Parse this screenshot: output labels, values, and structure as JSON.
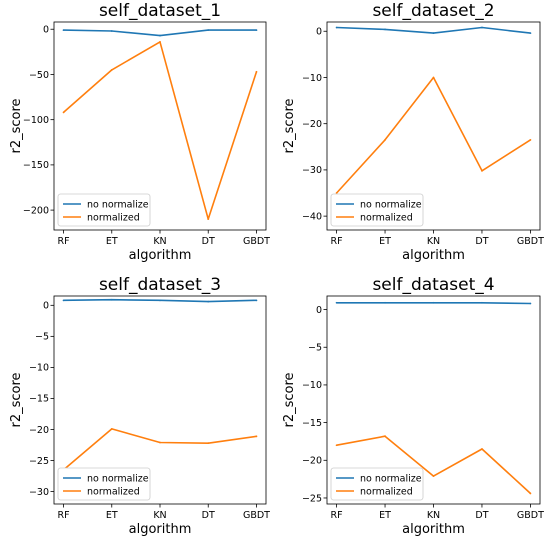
{
  "chart_data": [
    {
      "type": "line",
      "title": "self_dataset_1",
      "xlabel": "algorithm",
      "ylabel": "r2_score",
      "categories": [
        "RF",
        "ET",
        "KN",
        "DT",
        "GBDT"
      ],
      "ylim": [
        -222,
        8
      ],
      "yticks": [
        0,
        -50,
        -100,
        -150,
        -200
      ],
      "yticklabels": [
        "0",
        "−50",
        "−100",
        "−150",
        "−200"
      ],
      "legend": "lower-left",
      "grid": false,
      "series": [
        {
          "name": "no normalize",
          "color": "#1f77b4",
          "values": [
            -1,
            -2,
            -7,
            -1,
            -1
          ]
        },
        {
          "name": "normalized",
          "color": "#ff7f0e",
          "values": [
            -92,
            -45,
            -14,
            -210,
            -47
          ]
        }
      ]
    },
    {
      "type": "line",
      "title": "self_dataset_2",
      "xlabel": "algorithm",
      "ylabel": "r2_score",
      "categories": [
        "RF",
        "ET",
        "KN",
        "DT",
        "GBDT"
      ],
      "ylim": [
        -43,
        2
      ],
      "yticks": [
        0,
        -10,
        -20,
        -30,
        -40
      ],
      "yticklabels": [
        "0",
        "−10",
        "−20",
        "−30",
        "−40"
      ],
      "legend": "lower-left",
      "grid": false,
      "series": [
        {
          "name": "no normalize",
          "color": "#1f77b4",
          "values": [
            0.8,
            0.4,
            -0.4,
            0.8,
            -0.4
          ]
        },
        {
          "name": "normalized",
          "color": "#ff7f0e",
          "values": [
            -35,
            -23.5,
            -10,
            -30.2,
            -23.5
          ]
        }
      ]
    },
    {
      "type": "line",
      "title": "self_dataset_3",
      "xlabel": "algorithm",
      "ylabel": "r2_score",
      "categories": [
        "RF",
        "ET",
        "KN",
        "DT",
        "GBDT"
      ],
      "ylim": [
        -32,
        1.5
      ],
      "yticks": [
        0,
        -5,
        -10,
        -15,
        -20,
        -25,
        -30
      ],
      "yticklabels": [
        "0",
        "−5",
        "−10",
        "−15",
        "−20",
        "−25",
        "−30"
      ],
      "legend": "lower-left",
      "grid": false,
      "series": [
        {
          "name": "no normalize",
          "color": "#1f77b4",
          "values": [
            0.8,
            0.9,
            0.8,
            0.6,
            0.8
          ]
        },
        {
          "name": "normalized",
          "color": "#ff7f0e",
          "values": [
            -26.5,
            -19.9,
            -22.1,
            -22.2,
            -21.1
          ]
        }
      ]
    },
    {
      "type": "line",
      "title": "self_dataset_4",
      "xlabel": "algorithm",
      "ylabel": "r2_score",
      "categories": [
        "RF",
        "ET",
        "KN",
        "DT",
        "GBDT"
      ],
      "ylim": [
        -25.8,
        1.8
      ],
      "yticks": [
        0,
        -5,
        -10,
        -15,
        -20,
        -25
      ],
      "yticklabels": [
        "0",
        "−5",
        "−10",
        "−15",
        "−20",
        "−25"
      ],
      "legend": "lower-left",
      "grid": false,
      "series": [
        {
          "name": "no normalize",
          "color": "#1f77b4",
          "values": [
            0.9,
            0.9,
            0.9,
            0.9,
            0.8
          ]
        },
        {
          "name": "normalized",
          "color": "#ff7f0e",
          "values": [
            -18,
            -16.8,
            -22.1,
            -18.5,
            -24.4
          ]
        }
      ]
    }
  ]
}
